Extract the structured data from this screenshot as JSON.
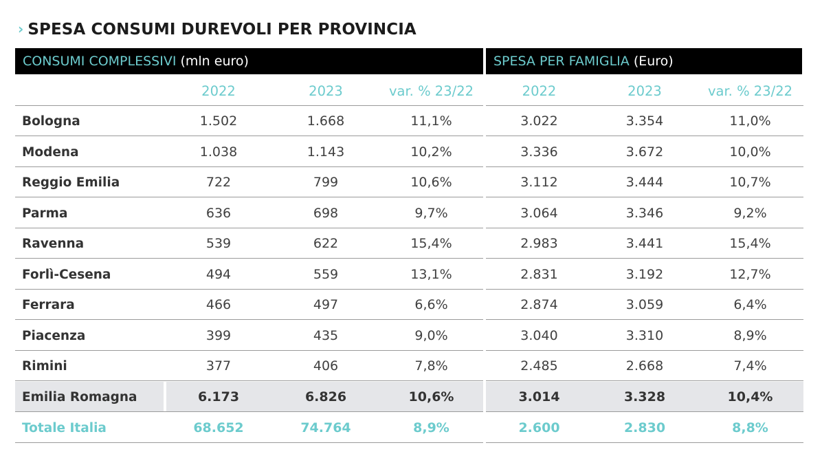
{
  "title": "SPESA CONSUMI DUREVOLI PER PROVINCIA",
  "title_marker": "›",
  "sections": {
    "left": {
      "label": "CONSUMI COMPLESSIVI",
      "unit": "(mln euro)"
    },
    "right": {
      "label": "SPESA PER FAMIGLIA",
      "unit": "(Euro)"
    }
  },
  "columns": [
    "2022",
    "2023",
    "var. % 23/22",
    "2022",
    "2023",
    "var. % 23/22"
  ],
  "rows": [
    {
      "name": "Bologna",
      "values": [
        "1.502",
        "1.668",
        "11,1%",
        "3.022",
        "3.354",
        "11,0%"
      ]
    },
    {
      "name": "Modena",
      "values": [
        "1.038",
        "1.143",
        "10,2%",
        "3.336",
        "3.672",
        "10,0%"
      ]
    },
    {
      "name": "Reggio Emilia",
      "values": [
        "722",
        "799",
        "10,6%",
        "3.112",
        "3.444",
        "10,7%"
      ]
    },
    {
      "name": "Parma",
      "values": [
        "636",
        "698",
        "9,7%",
        "3.064",
        "3.346",
        "9,2%"
      ]
    },
    {
      "name": "Ravenna",
      "values": [
        "539",
        "622",
        "15,4%",
        "2.983",
        "3.441",
        "15,4%"
      ]
    },
    {
      "name": "Forlì-Cesena",
      "values": [
        "494",
        "559",
        "13,1%",
        "2.831",
        "3.192",
        "12,7%"
      ]
    },
    {
      "name": "Ferrara",
      "values": [
        "466",
        "497",
        "6,6%",
        "2.874",
        "3.059",
        "6,4%"
      ]
    },
    {
      "name": "Piacenza",
      "values": [
        "399",
        "435",
        "9,0%",
        "3.040",
        "3.310",
        "8,9%"
      ]
    },
    {
      "name": "Rimini",
      "values": [
        "377",
        "406",
        "7,8%",
        "2.485",
        "2.668",
        "7,4%"
      ]
    }
  ],
  "region": {
    "name": "Emilia Romagna",
    "values": [
      "6.173",
      "6.826",
      "10,6%",
      "3.014",
      "3.328",
      "10,4%"
    ]
  },
  "total": {
    "name": "Totale Italia",
    "values": [
      "68.652",
      "74.764",
      "8,9%",
      "2.600",
      "2.830",
      "8,8%"
    ]
  },
  "colors": {
    "accent": "#6ccbcd",
    "header_bg": "#000000",
    "shade": "#e5e6e9",
    "rule": "#9a9a9a"
  }
}
